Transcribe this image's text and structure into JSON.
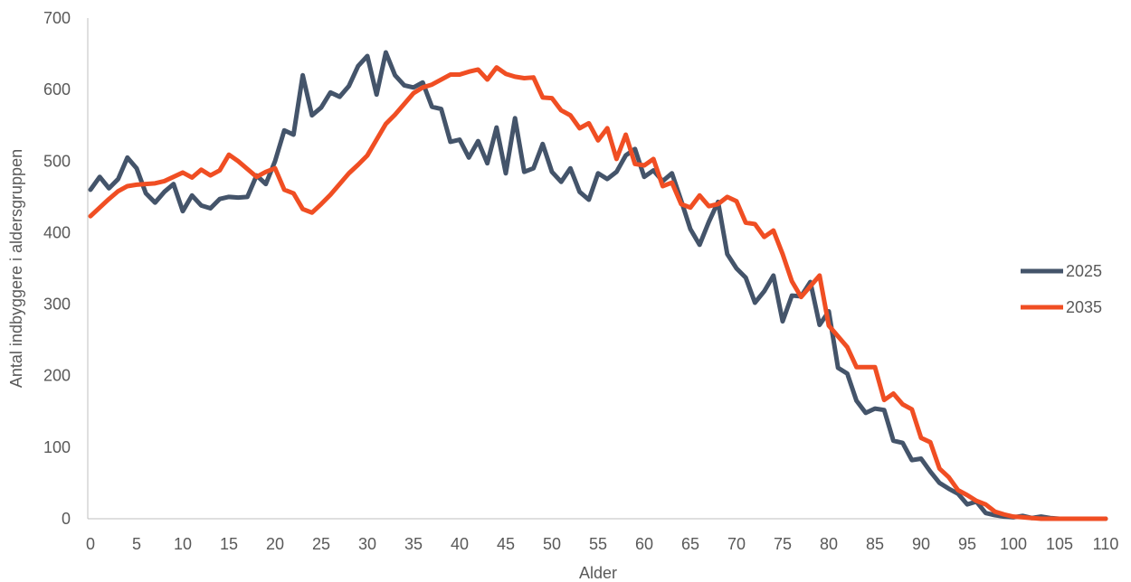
{
  "chart_data": {
    "type": "line",
    "title": "",
    "xlabel": "Alder",
    "ylabel": "Antal indbyggere i aldersgruppen",
    "xlim": [
      0,
      110
    ],
    "ylim": [
      0,
      700
    ],
    "x_ticks": [
      0,
      5,
      10,
      15,
      20,
      25,
      30,
      35,
      40,
      45,
      50,
      55,
      60,
      65,
      70,
      75,
      80,
      85,
      90,
      95,
      100,
      105,
      110
    ],
    "y_ticks": [
      0,
      100,
      200,
      300,
      400,
      500,
      600,
      700
    ],
    "grid": false,
    "legend_position": "right",
    "colors": {
      "2025": "#44546A",
      "2035": "#F04E23",
      "axis": "#BFBFBF",
      "text": "#595959"
    },
    "series": [
      {
        "name": "2025",
        "values": [
          460,
          478,
          462,
          475,
          505,
          490,
          455,
          442,
          457,
          468,
          430,
          452,
          438,
          434,
          447,
          450,
          449,
          450,
          480,
          468,
          500,
          543,
          537,
          620,
          564,
          575,
          596,
          590,
          605,
          633,
          647,
          593,
          652,
          620,
          606,
          603,
          610,
          576,
          573,
          527,
          530,
          505,
          528,
          497,
          547,
          483,
          560,
          485,
          490,
          524,
          485,
          471,
          490,
          457,
          446,
          483,
          475,
          485,
          508,
          517,
          478,
          487,
          472,
          483,
          445,
          405,
          383,
          415,
          443,
          370,
          350,
          337,
          302,
          318,
          340,
          276,
          312,
          311,
          331,
          271,
          290,
          211,
          203,
          165,
          148,
          154,
          152,
          109,
          106,
          82,
          84,
          66,
          50,
          42,
          35,
          20,
          24,
          8,
          5,
          3,
          2,
          4,
          1,
          3,
          1,
          0,
          0,
          0,
          0,
          0,
          0
        ]
      },
      {
        "name": "2035",
        "values": [
          423,
          435,
          447,
          458,
          465,
          467,
          468,
          469,
          472,
          478,
          484,
          477,
          488,
          480,
          487,
          509,
          500,
          489,
          478,
          485,
          490,
          460,
          455,
          433,
          428,
          440,
          453,
          468,
          483,
          495,
          508,
          530,
          552,
          565,
          580,
          595,
          603,
          607,
          614,
          621,
          621,
          625,
          628,
          614,
          631,
          622,
          618,
          616,
          617,
          589,
          588,
          571,
          564,
          546,
          553,
          529,
          546,
          503,
          537,
          496,
          494,
          503,
          465,
          470,
          440,
          435,
          452,
          437,
          440,
          450,
          444,
          414,
          412,
          394,
          403,
          370,
          332,
          310,
          325,
          340,
          270,
          255,
          240,
          212,
          212,
          212,
          166,
          175,
          160,
          153,
          113,
          107,
          70,
          58,
          40,
          33,
          25,
          20,
          10,
          6,
          3,
          2,
          1,
          0,
          0,
          0,
          0,
          0,
          0,
          0,
          0
        ]
      }
    ]
  }
}
